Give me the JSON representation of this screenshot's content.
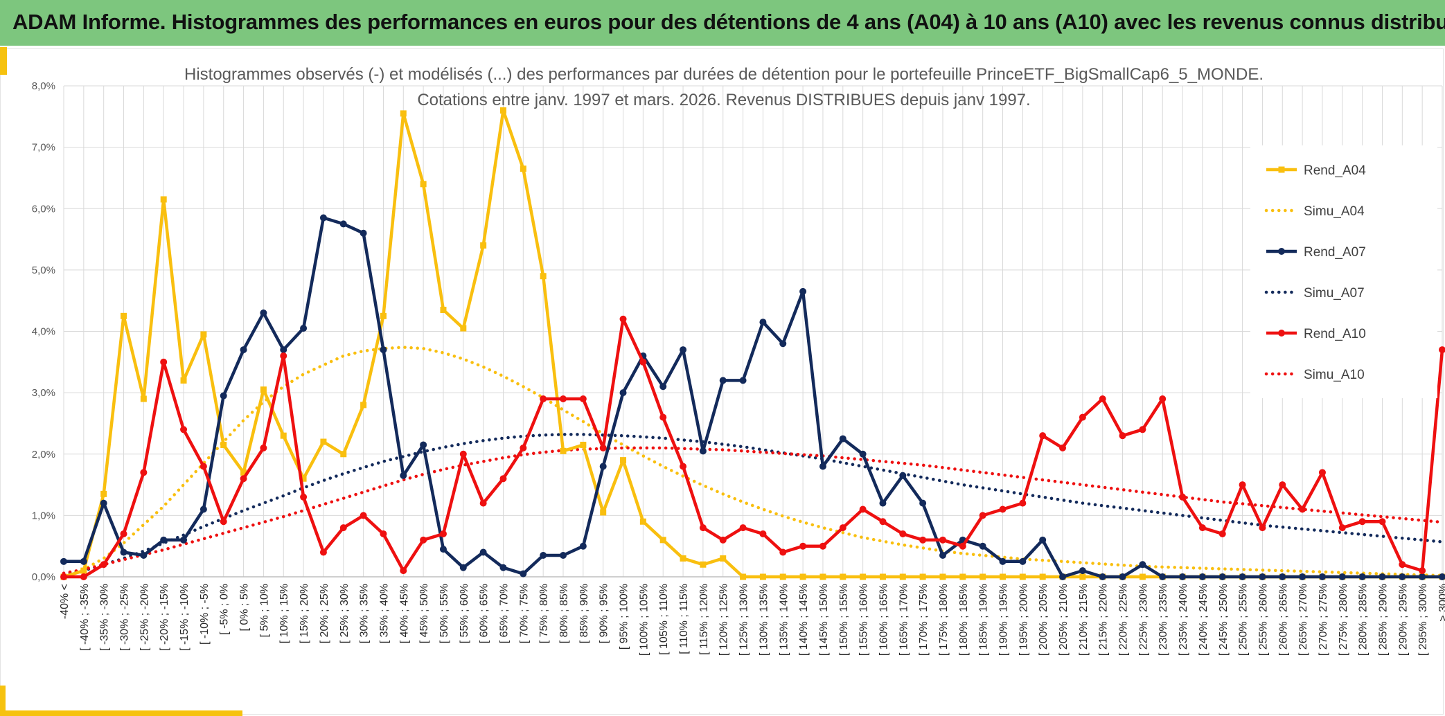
{
  "header": {
    "title": "ADAM Informe. Histogrammes des performances en euros pour des détentions de 4 ans (A04) à 10 ans (A10) avec les revenus connus distribués"
  },
  "colors": {
    "banner": "#7dc67e",
    "accent": "#f6c20f",
    "A04": "#f9bf0f",
    "A07": "#132a5b",
    "A10": "#ee1010"
  },
  "chart_data": {
    "type": "line",
    "title_lines": [
      "Histogrammes observés (-) et modélisés (...) des performances par durées de détention pour le portefeuille PrinceETF_BigSmallCap6_5_MONDE.",
      "Cotations entre janv. 1997 et mars. 2026. Revenus DISTRIBUES depuis janv 1997."
    ],
    "ylim": [
      0,
      8
    ],
    "yticks": [
      "0,0%",
      "1,0%",
      "2,0%",
      "3,0%",
      "4,0%",
      "5,0%",
      "6,0%",
      "7,0%",
      "8,0%"
    ],
    "legend_position": "right",
    "categories": [
      "-40% <",
      "[ -40% ; -35%",
      "[ -35% ; -30%",
      "[ -30% ; -25%",
      "[ -25% ; -20%",
      "[ -20% ; -15%",
      "[ -15% ; -10%",
      "[ -10% ; -5%",
      "[ -5% ; 0%",
      "[ 0% ; 5%",
      "[ 5% ; 10%",
      "[ 10% ; 15%",
      "[ 15% ; 20%",
      "[ 20% ; 25%",
      "[ 25% ; 30%",
      "[ 30% ; 35%",
      "[ 35% ; 40%",
      "[ 40% ; 45%",
      "[ 45% ; 50%",
      "[ 50% ; 55%",
      "[ 55% ; 60%",
      "[ 60% ; 65%",
      "[ 65% ; 70%",
      "[ 70% ; 75%",
      "[ 75% ; 80%",
      "[ 80% ; 85%",
      "[ 85% ; 90%",
      "[ 90% ; 95%",
      "[ 95% ; 100%",
      "[ 100% ; 105%",
      "[ 105% ; 110%",
      "[ 110% ; 115%",
      "[ 115% ; 120%",
      "[ 120% ; 125%",
      "[ 125% ; 130%",
      "[ 130% ; 135%",
      "[ 135% ; 140%",
      "[ 140% ; 145%",
      "[ 145% ; 150%",
      "[ 150% ; 155%",
      "[ 155% ; 160%",
      "[ 160% ; 165%",
      "[ 165% ; 170%",
      "[ 170% ; 175%",
      "[ 175% ; 180%",
      "[ 180% ; 185%",
      "[ 185% ; 190%",
      "[ 190% ; 195%",
      "[ 195% ; 200%",
      "[ 200% ; 205%",
      "[ 205% ; 210%",
      "[ 210% ; 215%",
      "[ 215% ; 220%",
      "[ 220% ; 225%",
      "[ 225% ; 230%",
      "[ 230% ; 235%",
      "[ 235% ; 240%",
      "[ 240% ; 245%",
      "[ 245% ; 250%",
      "[ 250% ; 255%",
      "[ 255% ; 260%",
      "[ 260% ; 265%",
      "[ 265% ; 270%",
      "[ 270% ; 275%",
      "[ 275% ; 280%",
      "[ 280% ; 285%",
      "[ 285% ; 290%",
      "[ 290% ; 295%",
      "[ 295% ; 300%",
      "> 300%"
    ],
    "series": [
      {
        "name": "Rend_A04",
        "style": "solid",
        "marker": "square",
        "color": "#f9bf0f",
        "values": [
          0.0,
          0.1,
          1.35,
          4.25,
          2.9,
          6.15,
          3.2,
          3.95,
          2.15,
          1.7,
          3.05,
          2.3,
          1.6,
          2.2,
          2.0,
          2.8,
          4.25,
          7.55,
          6.4,
          4.35,
          4.05,
          5.4,
          7.6,
          6.65,
          4.9,
          2.05,
          2.15,
          1.05,
          1.9,
          0.9,
          0.6,
          0.3,
          0.2,
          0.3,
          0.0,
          0.0,
          0.0,
          0.0,
          0.0,
          0.0,
          0.0,
          0.0,
          0.0,
          0.0,
          0.0,
          0.0,
          0.0,
          0.0,
          0.0,
          0.0,
          0.0,
          0.0,
          0.0,
          0.0,
          0.0,
          0.0,
          0.0,
          0.0,
          0.0,
          0.0,
          0.0,
          0.0,
          0.0,
          0.0,
          0.0,
          0.0,
          0.0,
          0.0,
          0.0,
          0.0
        ]
      },
      {
        "name": "Simu_A04",
        "style": "dotted",
        "color": "#f9bf0f",
        "values": [
          0.04,
          0.12,
          0.3,
          0.55,
          0.85,
          1.15,
          1.5,
          1.85,
          2.2,
          2.55,
          2.85,
          3.1,
          3.3,
          3.45,
          3.6,
          3.68,
          3.72,
          3.74,
          3.72,
          3.65,
          3.55,
          3.42,
          3.27,
          3.1,
          2.92,
          2.72,
          2.53,
          2.33,
          2.15,
          1.97,
          1.8,
          1.64,
          1.49,
          1.35,
          1.22,
          1.1,
          0.99,
          0.89,
          0.8,
          0.72,
          0.64,
          0.58,
          0.52,
          0.47,
          0.42,
          0.38,
          0.35,
          0.32,
          0.29,
          0.27,
          0.25,
          0.23,
          0.21,
          0.19,
          0.17,
          0.16,
          0.15,
          0.14,
          0.13,
          0.12,
          0.11,
          0.1,
          0.09,
          0.08,
          0.07,
          0.06,
          0.05,
          0.04,
          0.03,
          0.02
        ]
      },
      {
        "name": "Rend_A07",
        "style": "solid",
        "marker": "circle",
        "color": "#132a5b",
        "values": [
          0.25,
          0.25,
          1.2,
          0.4,
          0.35,
          0.6,
          0.6,
          1.1,
          2.95,
          3.7,
          4.3,
          3.7,
          4.05,
          5.85,
          5.75,
          5.6,
          3.7,
          1.65,
          2.15,
          0.45,
          0.15,
          0.4,
          0.15,
          0.05,
          0.35,
          0.35,
          0.5,
          1.8,
          3.0,
          3.6,
          3.1,
          3.7,
          2.05,
          3.2,
          3.2,
          4.15,
          3.8,
          4.65,
          1.8,
          2.25,
          2.0,
          1.2,
          1.65,
          1.2,
          0.35,
          0.6,
          0.5,
          0.25,
          0.25,
          0.6,
          0.0,
          0.1,
          0.0,
          0.0,
          0.2,
          0.0,
          0.0,
          0.0,
          0.0,
          0.0,
          0.0,
          0.0,
          0.0,
          0.0,
          0.0,
          0.0,
          0.0,
          0.0,
          0.0,
          0.0
        ]
      },
      {
        "name": "Simu_A07",
        "style": "dotted",
        "color": "#132a5b",
        "values": [
          0.05,
          0.1,
          0.2,
          0.3,
          0.42,
          0.55,
          0.68,
          0.82,
          0.95,
          1.08,
          1.2,
          1.32,
          1.45,
          1.57,
          1.68,
          1.78,
          1.88,
          1.96,
          2.04,
          2.11,
          2.17,
          2.22,
          2.26,
          2.29,
          2.31,
          2.32,
          2.32,
          2.31,
          2.3,
          2.28,
          2.26,
          2.23,
          2.2,
          2.16,
          2.12,
          2.07,
          2.02,
          1.97,
          1.92,
          1.86,
          1.8,
          1.74,
          1.68,
          1.62,
          1.56,
          1.5,
          1.45,
          1.4,
          1.35,
          1.3,
          1.25,
          1.2,
          1.16,
          1.12,
          1.08,
          1.04,
          1.0,
          0.96,
          0.92,
          0.88,
          0.84,
          0.81,
          0.78,
          0.75,
          0.72,
          0.69,
          0.66,
          0.63,
          0.6,
          0.57
        ]
      },
      {
        "name": "Rend_A10",
        "style": "solid",
        "marker": "circle",
        "color": "#ee1010",
        "values": [
          0.0,
          0.0,
          0.2,
          0.7,
          1.7,
          3.5,
          2.4,
          1.8,
          0.9,
          1.6,
          2.1,
          3.6,
          1.3,
          0.4,
          0.8,
          1.0,
          0.7,
          0.1,
          0.6,
          0.7,
          2.0,
          1.2,
          1.6,
          2.1,
          2.9,
          2.9,
          2.9,
          2.1,
          4.2,
          3.5,
          2.6,
          1.8,
          0.8,
          0.6,
          0.8,
          0.7,
          0.4,
          0.5,
          0.5,
          0.8,
          1.1,
          0.9,
          0.7,
          0.6,
          0.6,
          0.5,
          1.0,
          1.1,
          1.2,
          2.3,
          2.1,
          2.6,
          2.9,
          2.3,
          2.4,
          2.9,
          1.3,
          0.8,
          0.7,
          1.5,
          0.8,
          1.5,
          1.1,
          1.7,
          0.8,
          0.9,
          0.9,
          0.2,
          0.1,
          3.7
        ]
      },
      {
        "name": "Simu_A10",
        "style": "dotted",
        "color": "#ee1010",
        "values": [
          0.06,
          0.12,
          0.2,
          0.28,
          0.36,
          0.44,
          0.53,
          0.62,
          0.71,
          0.8,
          0.89,
          0.98,
          1.08,
          1.18,
          1.28,
          1.38,
          1.48,
          1.58,
          1.67,
          1.75,
          1.82,
          1.88,
          1.94,
          1.99,
          2.03,
          2.06,
          2.08,
          2.09,
          2.1,
          2.1,
          2.1,
          2.09,
          2.08,
          2.07,
          2.05,
          2.03,
          2.01,
          1.99,
          1.97,
          1.94,
          1.91,
          1.88,
          1.85,
          1.82,
          1.78,
          1.74,
          1.7,
          1.66,
          1.62,
          1.58,
          1.54,
          1.5,
          1.46,
          1.42,
          1.38,
          1.34,
          1.3,
          1.26,
          1.22,
          1.19,
          1.16,
          1.13,
          1.1,
          1.07,
          1.04,
          1.01,
          0.98,
          0.95,
          0.92,
          0.89
        ]
      }
    ]
  }
}
